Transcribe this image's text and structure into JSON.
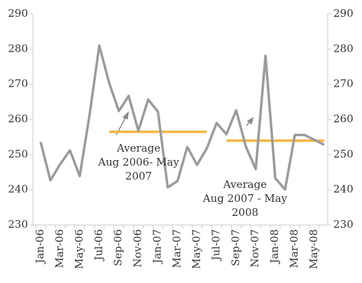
{
  "chart_data": {
    "type": "line",
    "categories": [
      "Jan-06",
      null,
      "Mar-06",
      null,
      "May-06",
      null,
      "Jul-06",
      null,
      "Sep-06",
      null,
      "Nov-06",
      null,
      "Jan-07",
      null,
      "Mar-07",
      null,
      "May-07",
      null,
      "Jul-07",
      null,
      "Sep-07",
      null,
      "Nov-07",
      null,
      "Jan-08",
      null,
      "Mar-08",
      null,
      "May-08",
      null
    ],
    "series": [
      {
        "color": "#9b9b9b",
        "values": [
          253.6,
          242.7,
          247.3,
          251.2,
          243.9,
          261.2,
          281,
          270.5,
          262.4,
          266.7,
          256.8,
          265.7,
          262.2,
          240.7,
          242.5,
          252.2,
          247.1,
          251.8,
          259,
          255.8,
          262.6,
          252.2,
          245.9,
          278.1,
          243.3,
          240.1,
          255.6,
          255.6,
          254.2,
          252.8
        ]
      },
      {
        "color": "#f5b53f",
        "values": [
          null,
          null,
          null,
          null,
          null,
          null,
          null,
          256.5,
          256.5,
          256.5,
          256.5,
          256.5,
          256.5,
          256.5,
          256.5,
          256.5,
          256.5,
          256.5,
          null,
          null,
          null,
          null,
          null,
          null,
          null,
          null,
          null,
          null,
          null,
          null
        ]
      },
      {
        "color": "#f5b53f",
        "values": [
          null,
          null,
          null,
          null,
          null,
          null,
          null,
          null,
          null,
          null,
          null,
          null,
          null,
          null,
          null,
          null,
          null,
          null,
          null,
          254,
          254,
          254,
          254,
          254,
          254,
          254,
          254,
          254,
          254,
          254
        ]
      }
    ],
    "annotations": [
      {
        "lines": [
          "Average",
          "Aug 2006- May",
          "2007"
        ]
      },
      {
        "lines": [
          "Average",
          "Aug 2007 - May",
          "2008"
        ]
      }
    ],
    "ylim": [
      230,
      290
    ],
    "yticks": [
      230,
      240,
      250,
      260,
      270,
      280,
      290
    ],
    "y2lim": [
      230,
      290
    ],
    "y2ticks": [
      230,
      240,
      250,
      260,
      270,
      280,
      290
    ]
  }
}
